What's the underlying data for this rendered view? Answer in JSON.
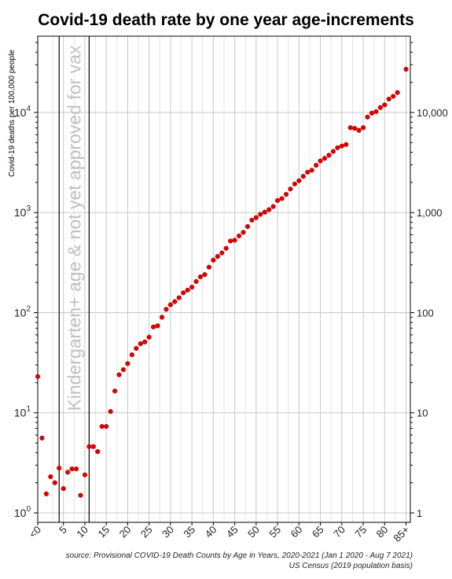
{
  "chart_data": {
    "type": "scatter",
    "title": "Covid-19 death rate by one year age-increments",
    "ylabel": "Covid-19 deaths per 100,000 people",
    "xlabel": "",
    "y_scale": "log",
    "ylim": [
      1,
      50000
    ],
    "xlim": [
      -1,
      86
    ],
    "x_tick_labels": [
      {
        "x": -1,
        "label": "<0"
      },
      {
        "x": 5,
        "label": "5"
      },
      {
        "x": 10,
        "label": "10"
      },
      {
        "x": 15,
        "label": "15"
      },
      {
        "x": 20,
        "label": "20"
      },
      {
        "x": 25,
        "label": "25"
      },
      {
        "x": 30,
        "label": "30"
      },
      {
        "x": 35,
        "label": "35"
      },
      {
        "x": 40,
        "label": "40"
      },
      {
        "x": 45,
        "label": "45"
      },
      {
        "x": 50,
        "label": "50"
      },
      {
        "x": 55,
        "label": "55"
      },
      {
        "x": 60,
        "label": "60"
      },
      {
        "x": 65,
        "label": "65"
      },
      {
        "x": 70,
        "label": "70"
      },
      {
        "x": 75,
        "label": "75"
      },
      {
        "x": 80,
        "label": "80"
      },
      {
        "x": 85,
        "label": "85+"
      }
    ],
    "y_ticks_left": [
      {
        "value": 1,
        "base": "10",
        "exp": "0"
      },
      {
        "value": 10,
        "base": "10",
        "exp": "1"
      },
      {
        "value": 100,
        "base": "10",
        "exp": "2"
      },
      {
        "value": 1000,
        "base": "10",
        "exp": "3"
      },
      {
        "value": 10000,
        "base": "10",
        "exp": "4"
      }
    ],
    "y_ticks_right": [
      {
        "value": 1,
        "label": "1"
      },
      {
        "value": 10,
        "label": "10"
      },
      {
        "value": 100,
        "label": "100"
      },
      {
        "value": 1000,
        "label": "1,000"
      },
      {
        "value": 10000,
        "label": "10,000"
      }
    ],
    "vertical_lines": [
      4,
      11
    ],
    "annotation": {
      "text": "Kindergarten+ age & not yet approved for vax",
      "color": "#c0c0c0"
    },
    "marker_color": "#e00000",
    "grid": true,
    "points": [
      {
        "x": -1,
        "y": 23
      },
      {
        "x": 0,
        "y": 5.6
      },
      {
        "x": 1,
        "y": 1.55
      },
      {
        "x": 2,
        "y": 2.3
      },
      {
        "x": 3,
        "y": 2.0
      },
      {
        "x": 4,
        "y": 2.8
      },
      {
        "x": 5,
        "y": 1.75
      },
      {
        "x": 6,
        "y": 2.55
      },
      {
        "x": 7,
        "y": 2.75
      },
      {
        "x": 8,
        "y": 2.75
      },
      {
        "x": 9,
        "y": 1.5
      },
      {
        "x": 10,
        "y": 2.4
      },
      {
        "x": 11,
        "y": 4.6
      },
      {
        "x": 12,
        "y": 4.6
      },
      {
        "x": 13,
        "y": 4.1
      },
      {
        "x": 14,
        "y": 7.3
      },
      {
        "x": 15,
        "y": 7.3
      },
      {
        "x": 16,
        "y": 10.3
      },
      {
        "x": 17,
        "y": 16.5
      },
      {
        "x": 18,
        "y": 24
      },
      {
        "x": 19,
        "y": 27
      },
      {
        "x": 20,
        "y": 31
      },
      {
        "x": 21,
        "y": 38
      },
      {
        "x": 22,
        "y": 44
      },
      {
        "x": 23,
        "y": 49
      },
      {
        "x": 24,
        "y": 51
      },
      {
        "x": 25,
        "y": 57
      },
      {
        "x": 26,
        "y": 72
      },
      {
        "x": 27,
        "y": 74
      },
      {
        "x": 28,
        "y": 90
      },
      {
        "x": 29,
        "y": 108
      },
      {
        "x": 30,
        "y": 120
      },
      {
        "x": 31,
        "y": 129
      },
      {
        "x": 32,
        "y": 141
      },
      {
        "x": 33,
        "y": 158
      },
      {
        "x": 34,
        "y": 168
      },
      {
        "x": 35,
        "y": 180
      },
      {
        "x": 36,
        "y": 205
      },
      {
        "x": 37,
        "y": 228
      },
      {
        "x": 38,
        "y": 240
      },
      {
        "x": 39,
        "y": 285
      },
      {
        "x": 40,
        "y": 335
      },
      {
        "x": 41,
        "y": 365
      },
      {
        "x": 42,
        "y": 395
      },
      {
        "x": 43,
        "y": 440
      },
      {
        "x": 44,
        "y": 520
      },
      {
        "x": 45,
        "y": 530
      },
      {
        "x": 46,
        "y": 585
      },
      {
        "x": 47,
        "y": 635
      },
      {
        "x": 48,
        "y": 725
      },
      {
        "x": 49,
        "y": 840
      },
      {
        "x": 50,
        "y": 890
      },
      {
        "x": 51,
        "y": 960
      },
      {
        "x": 52,
        "y": 1010
      },
      {
        "x": 53,
        "y": 1070
      },
      {
        "x": 54,
        "y": 1150
      },
      {
        "x": 55,
        "y": 1320
      },
      {
        "x": 56,
        "y": 1380
      },
      {
        "x": 57,
        "y": 1520
      },
      {
        "x": 58,
        "y": 1720
      },
      {
        "x": 59,
        "y": 1930
      },
      {
        "x": 60,
        "y": 2080
      },
      {
        "x": 61,
        "y": 2300
      },
      {
        "x": 62,
        "y": 2530
      },
      {
        "x": 63,
        "y": 2650
      },
      {
        "x": 64,
        "y": 2970
      },
      {
        "x": 65,
        "y": 3280
      },
      {
        "x": 66,
        "y": 3480
      },
      {
        "x": 67,
        "y": 3740
      },
      {
        "x": 68,
        "y": 4080
      },
      {
        "x": 69,
        "y": 4440
      },
      {
        "x": 70,
        "y": 4620
      },
      {
        "x": 71,
        "y": 4780
      },
      {
        "x": 72,
        "y": 7050
      },
      {
        "x": 73,
        "y": 6940
      },
      {
        "x": 74,
        "y": 6630
      },
      {
        "x": 75,
        "y": 7050
      },
      {
        "x": 76,
        "y": 9000
      },
      {
        "x": 77,
        "y": 9850
      },
      {
        "x": 78,
        "y": 10200
      },
      {
        "x": 79,
        "y": 11200
      },
      {
        "x": 80,
        "y": 11900
      },
      {
        "x": 81,
        "y": 13600
      },
      {
        "x": 82,
        "y": 14500
      },
      {
        "x": 83,
        "y": 15800
      },
      {
        "x": 85,
        "y": 27000
      }
    ]
  },
  "source": {
    "line1": "source: Provisional COVID-19 Death Counts by Age in Years, 2020-2021 (Jan 1 2020 - Aug 7 2021)",
    "line2": "US Census (2019 population basis)"
  },
  "colors": {
    "grid": "#c8c8c8",
    "marker": "#e00000",
    "annotation": "#c0c0c0"
  }
}
